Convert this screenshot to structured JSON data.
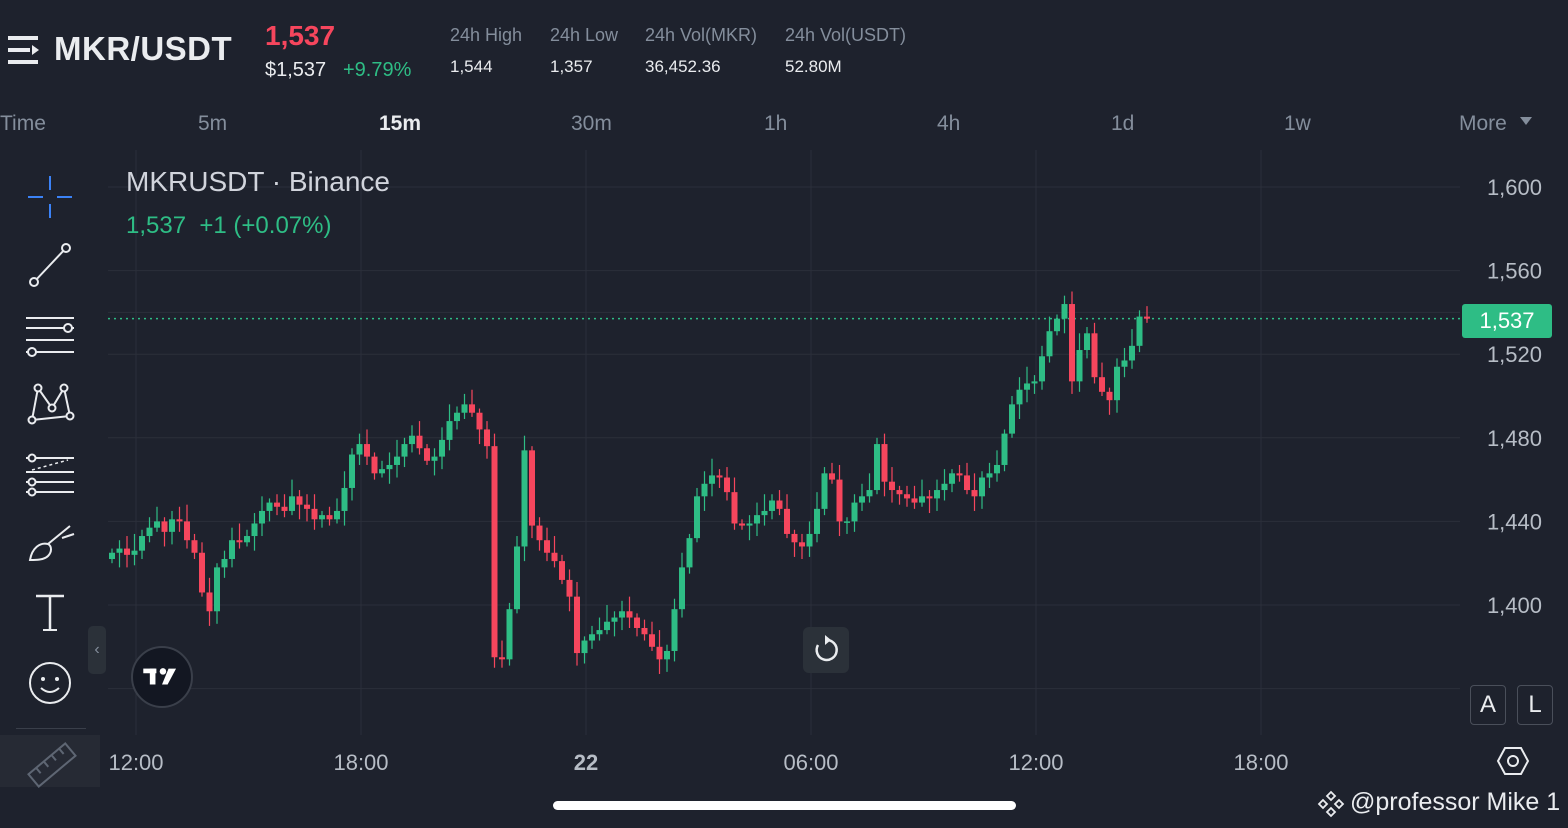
{
  "header": {
    "pair": "MKR/USDT",
    "last_price": "1,537",
    "usd_price": "$1,537",
    "change_pct": "+9.79%",
    "stats": [
      {
        "label": "24h High",
        "value": "1,544"
      },
      {
        "label": "24h Low",
        "value": "1,357"
      },
      {
        "label": "24h Vol(MKR)",
        "value": "36,452.36"
      },
      {
        "label": "24h Vol(USDT)",
        "value": "52.80M"
      }
    ]
  },
  "timeframes": {
    "items": [
      "Time",
      "5m",
      "15m",
      "30m",
      "1h",
      "4h",
      "1d",
      "1w",
      "More"
    ],
    "active": "15m"
  },
  "toolbar": {
    "icons": [
      "crosshair-icon",
      "trend-line-icon",
      "horizontal-lines-icon",
      "pattern-icon",
      "fib-lines-icon",
      "brush-icon",
      "text-icon",
      "emoji-icon",
      "ruler-icon"
    ],
    "collapse_glyph": "‹"
  },
  "chart": {
    "title": "MKRUSDT · Binance",
    "ohlc_text": "1,537  +1 (+0.07%)",
    "current_price_label": "1,537",
    "y_ticks": [
      "1,600",
      "1,560",
      "1,520",
      "1,480",
      "1,440",
      "1,400"
    ],
    "x_ticks": [
      "12:00",
      "18:00",
      "22",
      "06:00",
      "12:00",
      "18:00"
    ],
    "scale_buttons": [
      "A",
      "L"
    ],
    "colors": {
      "up": "#2ebd85",
      "down": "#f6465d",
      "grid": "#2b2f3a",
      "background": "#1e222d"
    }
  },
  "chart_data": {
    "type": "candlestick",
    "title": "MKRUSDT · Binance",
    "interval": "15m",
    "ylim": [
      1350,
      1620
    ],
    "y_ticks": [
      1400,
      1440,
      1480,
      1520,
      1560,
      1600
    ],
    "x_ticks": [
      "12:00",
      "18:00",
      "22",
      "06:00",
      "12:00",
      "18:00"
    ],
    "last_price": 1537,
    "closes": [
      1425,
      1427,
      1424,
      1426,
      1433,
      1437,
      1440,
      1435,
      1441,
      1440,
      1431,
      1425,
      1406,
      1397,
      1418,
      1422,
      1431,
      1430,
      1433,
      1439,
      1445,
      1449,
      1447,
      1445,
      1452,
      1448,
      1446,
      1441,
      1443,
      1441,
      1445,
      1456,
      1472,
      1477,
      1471,
      1463,
      1465,
      1467,
      1471,
      1477,
      1481,
      1475,
      1469,
      1471,
      1479,
      1488,
      1492,
      1496,
      1492,
      1484,
      1476,
      1375,
      1374,
      1398,
      1428,
      1474,
      1438,
      1431,
      1425,
      1421,
      1412,
      1404,
      1377,
      1383,
      1386,
      1388,
      1392,
      1394,
      1397,
      1394,
      1389,
      1386,
      1380,
      1374,
      1378,
      1398,
      1418,
      1432,
      1452,
      1458,
      1462,
      1461,
      1454,
      1439,
      1438,
      1439,
      1443,
      1445,
      1450,
      1446,
      1434,
      1430,
      1428,
      1434,
      1446,
      1463,
      1460,
      1440,
      1440,
      1449,
      1452,
      1455,
      1477,
      1459,
      1455,
      1453,
      1451,
      1449,
      1452,
      1451,
      1455,
      1458,
      1463,
      1462,
      1455,
      1452,
      1461,
      1463,
      1467,
      1482,
      1496,
      1503,
      1506,
      1507,
      1519,
      1531,
      1537,
      1544,
      1507,
      1522,
      1530,
      1509,
      1502,
      1498,
      1514,
      1517,
      1524,
      1538,
      1537
    ],
    "volume_note": ""
  }
}
